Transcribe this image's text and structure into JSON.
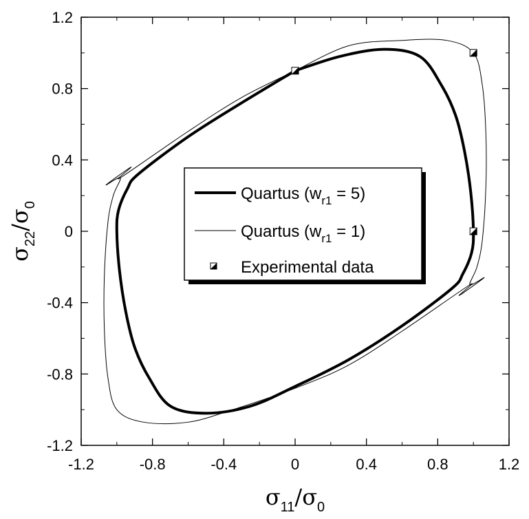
{
  "chart_data": {
    "type": "line",
    "x_axis": {
      "label": {
        "sym": "σ",
        "sub1": "11",
        "slash": "/",
        "sym2": "σ",
        "sub2": "0"
      },
      "range": [
        -1.2,
        1.2
      ],
      "ticks": [
        "-1.2",
        "-0.8",
        "-0.4",
        "0",
        "0.4",
        "0.8",
        "1.2"
      ]
    },
    "y_axis": {
      "label": {
        "sym": "σ",
        "sub1": "22",
        "slash": "/",
        "sym2": "σ",
        "sub2": "0"
      },
      "range": [
        -1.2,
        1.2
      ],
      "ticks": [
        "-1.2",
        "-0.8",
        "-0.4",
        "0",
        "0.4",
        "0.8",
        "1.2"
      ]
    },
    "grid": false,
    "legend": {
      "placement": "center",
      "entries": [
        {
          "prefix": "Quartus (w",
          "sub": "r1",
          "suffix": " = 5)",
          "style": "thick-line"
        },
        {
          "prefix": "Quartus (w",
          "sub": "r1",
          "suffix": " = 1)",
          "style": "thin-line"
        },
        {
          "prefix": "Experimental data",
          "sub": "",
          "suffix": "",
          "style": "marker"
        }
      ]
    },
    "series": [
      {
        "name": "Quartus (wr1 = 5)",
        "color": "#000000",
        "stroke": "thick",
        "points": [
          [
            0.0,
            0.9
          ],
          [
            0.25,
            0.98
          ],
          [
            0.5,
            1.02
          ],
          [
            0.7,
            0.98
          ],
          [
            0.82,
            0.82
          ],
          [
            0.9,
            0.65
          ],
          [
            0.95,
            0.45
          ],
          [
            0.985,
            0.22
          ],
          [
            1.0,
            0.0
          ],
          [
            0.99,
            -0.12
          ],
          [
            0.94,
            -0.24
          ],
          [
            0.88,
            -0.32
          ],
          [
            0.6,
            -0.53
          ],
          [
            0.3,
            -0.72
          ],
          [
            0.0,
            -0.87
          ],
          [
            -0.25,
            -0.98
          ],
          [
            -0.5,
            -1.02
          ],
          [
            -0.7,
            -0.98
          ],
          [
            -0.82,
            -0.82
          ],
          [
            -0.9,
            -0.65
          ],
          [
            -0.95,
            -0.45
          ],
          [
            -0.985,
            -0.22
          ],
          [
            -1.0,
            0.0
          ],
          [
            -0.99,
            0.12
          ],
          [
            -0.94,
            0.24
          ],
          [
            -0.88,
            0.32
          ],
          [
            -0.6,
            0.53
          ],
          [
            -0.3,
            0.72
          ],
          [
            0.0,
            0.9
          ]
        ]
      },
      {
        "name": "Quartus (wr1 = 1)",
        "color": "#000000",
        "stroke": "thin",
        "points": [
          [
            0.0,
            0.9
          ],
          [
            0.3,
            1.04
          ],
          [
            0.6,
            1.07
          ],
          [
            0.85,
            1.07
          ],
          [
            1.0,
            1.0
          ],
          [
            1.05,
            0.82
          ],
          [
            1.07,
            0.55
          ],
          [
            1.07,
            0.25
          ],
          [
            1.05,
            -0.05
          ],
          [
            1.02,
            -0.2
          ],
          [
            0.98,
            -0.3
          ],
          [
            1.06,
            -0.26
          ],
          [
            0.92,
            -0.36
          ],
          [
            0.98,
            -0.3
          ],
          [
            0.6,
            -0.56
          ],
          [
            0.3,
            -0.75
          ],
          [
            0.0,
            -0.88
          ],
          [
            -0.35,
            -1.0
          ],
          [
            -0.6,
            -1.07
          ],
          [
            -0.85,
            -1.07
          ],
          [
            -1.0,
            -1.0
          ],
          [
            -1.05,
            -0.82
          ],
          [
            -1.07,
            -0.55
          ],
          [
            -1.07,
            -0.25
          ],
          [
            -1.05,
            0.05
          ],
          [
            -1.02,
            0.2
          ],
          [
            -0.98,
            0.3
          ],
          [
            -1.06,
            0.26
          ],
          [
            -0.92,
            0.36
          ],
          [
            -0.98,
            0.3
          ],
          [
            -0.6,
            0.56
          ],
          [
            -0.3,
            0.75
          ],
          [
            0.0,
            0.9
          ]
        ]
      },
      {
        "name": "Experimental data",
        "type": "scatter",
        "marker": "half-filled-square",
        "points": [
          [
            0.0,
            0.9
          ],
          [
            1.0,
            1.0
          ],
          [
            1.0,
            0.0
          ]
        ]
      }
    ]
  }
}
